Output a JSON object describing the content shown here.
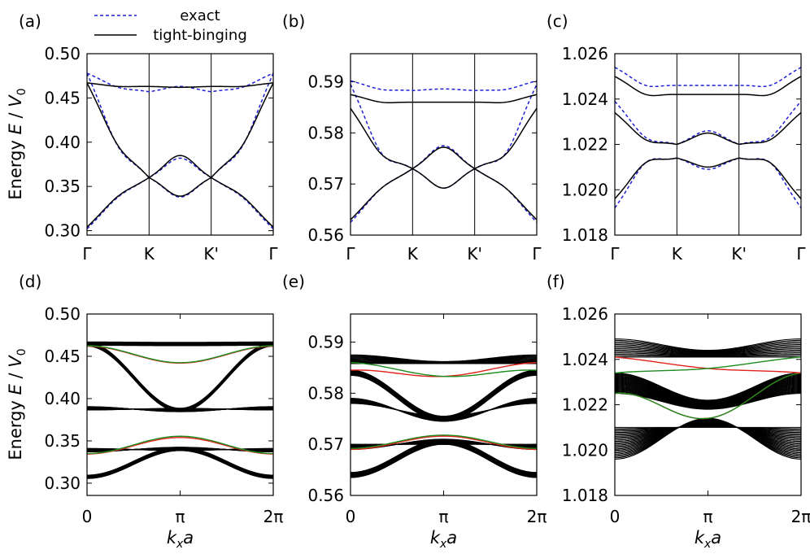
{
  "legend": {
    "exact": "exact",
    "tight_binding": "tight-binging"
  },
  "y_axis_label": {
    "prefix": "Energy ",
    "E": "E",
    "slash": " / ",
    "V": "V",
    "sub": "0"
  },
  "x_axis_label": {
    "k": "k",
    "sub": "x",
    "a": "a"
  },
  "colors": {
    "exact": "#1f1fd6",
    "tight_binding": "#000000",
    "edge_red": "#e0231b",
    "edge_green": "#1e8c1e"
  },
  "chart_data": [
    {
      "panel": "(a)",
      "type": "line",
      "x_ticks": [
        "Γ",
        "K",
        "K'",
        "Γ"
      ],
      "ylim": [
        0.295,
        0.5
      ],
      "y_ticks": [
        "0.30",
        "0.35",
        "0.40",
        "0.45",
        "0.50"
      ],
      "y_tick_values": [
        0.3,
        0.35,
        0.4,
        0.45,
        0.5
      ],
      "x_nodes": [
        0,
        1,
        2,
        3
      ],
      "series": [
        {
          "name": "exact",
          "values": [
            0.302,
            0.36,
            0.36,
            0.302
          ],
          "mid": [
            0.338,
            0.338,
            0.338
          ]
        },
        {
          "name": "exact",
          "values": [
            0.478,
            0.36,
            0.36,
            0.478
          ],
          "mid": [
            0.395,
            0.382,
            0.395
          ]
        },
        {
          "name": "exact",
          "values": [
            0.478,
            0.457,
            0.457,
            0.478
          ],
          "mid": [
            0.462,
            0.463,
            0.462
          ]
        },
        {
          "name": "tight-binging",
          "values": [
            0.304,
            0.36,
            0.36,
            0.304
          ],
          "mid": [
            0.339,
            0.339,
            0.339
          ]
        },
        {
          "name": "tight-binging",
          "values": [
            0.467,
            0.36,
            0.36,
            0.467
          ],
          "mid": [
            0.396,
            0.385,
            0.396
          ]
        },
        {
          "name": "tight-binging",
          "values": [
            0.467,
            0.463,
            0.463,
            0.467
          ],
          "mid": [
            0.463,
            0.462,
            0.463
          ]
        }
      ]
    },
    {
      "panel": "(b)",
      "type": "line",
      "x_ticks": [
        "Γ",
        "K",
        "K'",
        "Γ"
      ],
      "ylim": [
        0.56,
        0.5955
      ],
      "y_ticks": [
        "0.56",
        "0.57",
        "0.58",
        "0.59"
      ],
      "y_tick_values": [
        0.56,
        0.57,
        0.58,
        0.59
      ],
      "x_nodes": [
        0,
        1,
        2,
        3
      ],
      "series": [
        {
          "name": "exact",
          "values": [
            0.5625,
            0.573,
            0.573,
            0.5625
          ],
          "mid": [
            0.5692,
            0.5692,
            0.5692
          ]
        },
        {
          "name": "exact",
          "values": [
            0.5895,
            0.573,
            0.573,
            0.5895
          ],
          "mid": [
            0.576,
            0.5775,
            0.576
          ]
        },
        {
          "name": "exact",
          "values": [
            0.5902,
            0.5883,
            0.5883,
            0.5902
          ],
          "mid": [
            0.5885,
            0.5886,
            0.5885
          ]
        },
        {
          "name": "tight-binging",
          "values": [
            0.563,
            0.573,
            0.573,
            0.563
          ],
          "mid": [
            0.5692,
            0.5692,
            0.5692
          ]
        },
        {
          "name": "tight-binging",
          "values": [
            0.5848,
            0.573,
            0.573,
            0.5848
          ],
          "mid": [
            0.5758,
            0.5772,
            0.5758
          ]
        },
        {
          "name": "tight-binging",
          "values": [
            0.5875,
            0.586,
            0.586,
            0.5875
          ],
          "mid": [
            0.586,
            0.586,
            0.586
          ]
        }
      ]
    },
    {
      "panel": "(c)",
      "type": "line",
      "x_ticks": [
        "Γ",
        "K",
        "K'",
        "Γ"
      ],
      "ylim": [
        1.018,
        1.026
      ],
      "y_ticks": [
        "1.018",
        "1.020",
        "1.022",
        "1.024",
        "1.026"
      ],
      "y_tick_values": [
        1.018,
        1.02,
        1.022,
        1.024,
        1.026
      ],
      "x_nodes": [
        0,
        1,
        2,
        3
      ],
      "series": [
        {
          "name": "exact",
          "values": [
            1.0192,
            1.0214,
            1.0214,
            1.0192
          ],
          "mid": [
            1.0212,
            1.0209,
            1.0212
          ]
        },
        {
          "name": "exact",
          "values": [
            1.0239,
            1.022,
            1.022,
            1.0239
          ],
          "mid": [
            1.0223,
            1.0226,
            1.0223
          ]
        },
        {
          "name": "exact",
          "values": [
            1.0254,
            1.0246,
            1.0246,
            1.0254
          ],
          "mid": [
            1.0246,
            1.0246,
            1.0246
          ]
        },
        {
          "name": "tight-binging",
          "values": [
            1.0196,
            1.0214,
            1.0214,
            1.0196
          ],
          "mid": [
            1.0212,
            1.021,
            1.0212
          ]
        },
        {
          "name": "tight-binging",
          "values": [
            1.0234,
            1.022,
            1.022,
            1.0234
          ],
          "mid": [
            1.0222,
            1.0225,
            1.0222
          ]
        },
        {
          "name": "tight-binging",
          "values": [
            1.025,
            1.0242,
            1.0242,
            1.025
          ],
          "mid": [
            1.0242,
            1.0242,
            1.0242
          ]
        }
      ]
    },
    {
      "panel": "(d)",
      "type": "line",
      "x_ticks": [
        "0",
        "π",
        "2π"
      ],
      "x_tick_values": [
        0,
        3.14159,
        6.28318
      ],
      "xlim": [
        0,
        6.28318
      ],
      "ylim": [
        0.2855,
        0.5
      ],
      "y_ticks": [
        "0.30",
        "0.35",
        "0.40",
        "0.45",
        "0.50"
      ],
      "y_tick_values": [
        0.3,
        0.35,
        0.4,
        0.45,
        0.5
      ],
      "bands": [
        {
          "edges": [
            0.3055,
            0.3095
          ],
          "center": [
            0.3385,
            0.3425
          ],
          "n": 26
        },
        {
          "edges": [
            0.337,
            0.341
          ],
          "center": [
            0.3385,
            0.3425
          ],
          "n": 26,
          "reverse": true
        },
        {
          "edges": [
            0.3865,
            0.3905
          ],
          "center": [
            0.3845,
            0.3885
          ],
          "n": 26,
          "reverse": true
        },
        {
          "edges": [
            0.462,
            0.466
          ],
          "center": [
            0.3845,
            0.3885
          ],
          "n": 26
        },
        {
          "edges": [
            0.463,
            0.467
          ],
          "center": [
            0.4625,
            0.4665
          ],
          "n": 12
        }
      ],
      "edge_states": [
        {
          "color": "red",
          "edges": [
            0.3345,
            0.3345
          ],
          "center": 0.354
        },
        {
          "color": "green",
          "edges": [
            0.335,
            0.335
          ],
          "center": 0.3555
        },
        {
          "color": "red",
          "edges": [
            0.462,
            0.462
          ],
          "center": 0.442
        },
        {
          "color": "green",
          "edges": [
            0.4625,
            0.4625
          ],
          "center": 0.4425
        }
      ]
    },
    {
      "panel": "(e)",
      "type": "line",
      "x_ticks": [
        "0",
        "π",
        "2π"
      ],
      "x_tick_values": [
        0,
        3.14159,
        6.28318
      ],
      "xlim": [
        0,
        6.28318
      ],
      "ylim": [
        0.56,
        0.5955
      ],
      "y_ticks": [
        "0.56",
        "0.57",
        "0.58",
        "0.59"
      ],
      "y_tick_values": [
        0.56,
        0.57,
        0.58,
        0.59
      ],
      "bands": [
        {
          "edges": [
            0.5635,
            0.5645
          ],
          "center": [
            0.57,
            0.571
          ],
          "n": 26
        },
        {
          "edges": [
            0.569,
            0.57
          ],
          "center": [
            0.57,
            0.571
          ],
          "n": 26,
          "reverse": true
        },
        {
          "edges": [
            0.578,
            0.579
          ],
          "center": [
            0.5745,
            0.5755
          ],
          "n": 26,
          "reverse": true
        },
        {
          "edges": [
            0.5835,
            0.5845
          ],
          "center": [
            0.5745,
            0.5755
          ],
          "n": 26
        },
        {
          "edges": [
            0.5858,
            0.5875
          ],
          "center": [
            0.5858,
            0.5862
          ],
          "n": 12
        }
      ],
      "edge_states": [
        {
          "color": "red",
          "edges": [
            0.569,
            0.569
          ],
          "center": 0.5716
        },
        {
          "color": "green",
          "edges": [
            0.5692,
            0.5692
          ],
          "center": 0.5718
        },
        {
          "color": "red",
          "edges": [
            0.5845,
            0.586
          ],
          "center": 0.5833
        },
        {
          "color": "green",
          "edges": [
            0.586,
            0.5845
          ],
          "center": 0.5833
        }
      ]
    },
    {
      "panel": "(f)",
      "type": "line",
      "x_ticks": [
        "0",
        "π",
        "2π"
      ],
      "x_tick_values": [
        0,
        3.14159,
        6.28318
      ],
      "xlim": [
        0,
        6.28318
      ],
      "ylim": [
        1.018,
        1.026
      ],
      "y_ticks": [
        "1.018",
        "1.020",
        "1.022",
        "1.024",
        "1.026"
      ],
      "y_tick_values": [
        1.018,
        1.02,
        1.022,
        1.024,
        1.026
      ],
      "bands": [
        {
          "edges": [
            1.0196,
            1.021
          ],
          "center": [
            1.021,
            1.0214
          ],
          "n": 26,
          "reverse": true
        },
        {
          "edges": [
            1.0225,
            1.0234
          ],
          "center": [
            1.0218,
            1.0222
          ],
          "n": 26
        },
        {
          "edges": [
            1.0241,
            1.0249
          ],
          "center": [
            1.0241,
            1.0244
          ],
          "n": 14
        }
      ],
      "edge_states": [
        {
          "color": "red",
          "edges": [
            1.0225,
            1.0234
          ],
          "center": 1.0214
        },
        {
          "color": "green",
          "edges": [
            1.0225,
            1.0234
          ],
          "center": 1.0214
        },
        {
          "color": "red",
          "edges": [
            1.0241,
            1.0234
          ],
          "center": 1.0236
        },
        {
          "color": "green",
          "edges": [
            1.0234,
            1.0241
          ],
          "center": 1.0236
        }
      ]
    }
  ]
}
